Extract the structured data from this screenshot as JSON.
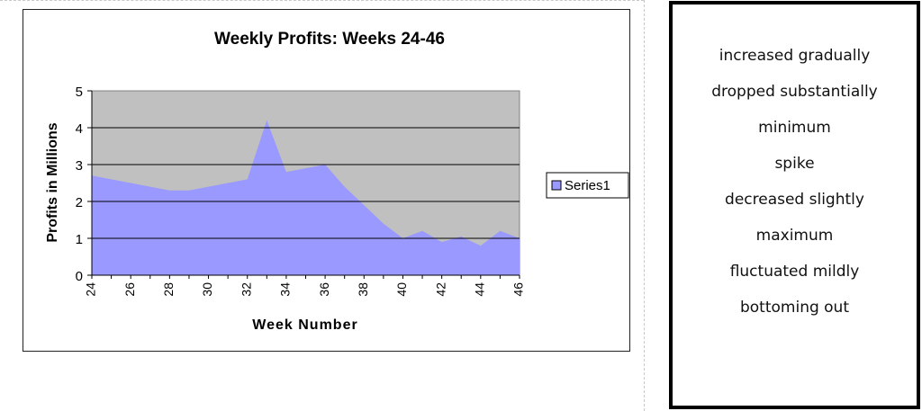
{
  "chart_data": {
    "type": "area",
    "title": "Weekly Profits: Weeks 24-46",
    "xlabel": "Week Number",
    "ylabel": "Profits in Millions",
    "x": [
      24,
      25,
      26,
      27,
      28,
      29,
      30,
      31,
      32,
      33,
      34,
      35,
      36,
      37,
      38,
      39,
      40,
      41,
      42,
      43,
      44,
      45,
      46
    ],
    "series": [
      {
        "name": "Series1",
        "values": [
          2.7,
          2.6,
          2.5,
          2.4,
          2.3,
          2.3,
          2.4,
          2.5,
          2.6,
          4.2,
          2.8,
          2.9,
          3.0,
          2.4,
          1.9,
          1.4,
          1.0,
          1.2,
          0.9,
          1.05,
          0.8,
          1.2,
          1.0
        ]
      }
    ],
    "xlim": [
      24,
      46
    ],
    "ylim": [
      0,
      5
    ],
    "x_ticks": [
      "24",
      "26",
      "28",
      "30",
      "32",
      "34",
      "36",
      "38",
      "40",
      "42",
      "44",
      "46"
    ],
    "y_ticks": [
      "0",
      "1",
      "2",
      "3",
      "4",
      "5"
    ],
    "grid": "horizontal",
    "legend": "right",
    "colors": {
      "area": "#9999ff",
      "plot_bg": "#c0c0c0",
      "grid": "#000000"
    }
  },
  "word_bank": {
    "items": [
      "increased gradually",
      "dropped substantially",
      "minimum",
      "spike",
      "decreased slightly",
      "maximum",
      "fluctuated mildly",
      "bottoming out"
    ]
  }
}
